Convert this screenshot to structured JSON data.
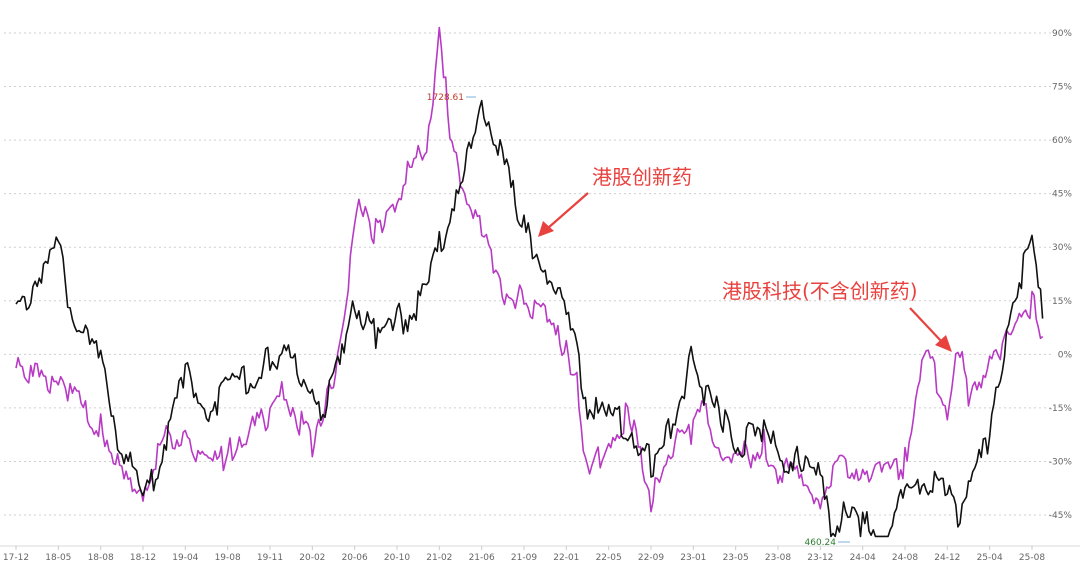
{
  "chart_data": {
    "type": "line",
    "title": "",
    "xlabel": "",
    "ylabel": "",
    "grid": true,
    "legend": "none",
    "x_ticks": [
      "17-12",
      "18-05",
      "18-08",
      "18-12",
      "19-04",
      "19-08",
      "19-11",
      "20-02",
      "20-06",
      "20-10",
      "21-02",
      "21-06",
      "21-09",
      "22-01",
      "22-05",
      "22-09",
      "23-01",
      "23-05",
      "23-08",
      "23-12",
      "24-04",
      "24-08",
      "24-12",
      "25-04",
      "25-08"
    ],
    "y_ticks": [
      "90%",
      "75%",
      "60%",
      "45%",
      "30%",
      "15%",
      "0%",
      "-15%",
      "-30%",
      "-45%"
    ],
    "y_tick_values": [
      90,
      75,
      60,
      45,
      30,
      15,
      0,
      -15,
      -30,
      -45
    ],
    "ylim": [
      -52,
      97
    ],
    "x": [
      "17-12",
      "18-02",
      "18-03",
      "18-05",
      "18-06",
      "18-08",
      "18-09",
      "18-10",
      "18-12",
      "19-01",
      "19-02",
      "19-04",
      "19-06",
      "19-08",
      "19-09",
      "19-11",
      "19-12",
      "20-02",
      "20-03",
      "20-05",
      "20-06",
      "20-08",
      "20-10",
      "20-11",
      "21-01",
      "21-02",
      "21-03",
      "21-04",
      "21-06",
      "21-07",
      "21-09",
      "21-11",
      "22-01",
      "22-02",
      "22-03",
      "22-05",
      "22-07",
      "22-09",
      "22-10",
      "23-01",
      "23-02",
      "23-04",
      "23-05",
      "23-07",
      "23-08",
      "23-10",
      "23-12",
      "24-01",
      "24-02",
      "24-04",
      "24-06",
      "24-08",
      "24-09",
      "24-10",
      "24-12",
      "25-01",
      "25-02",
      "25-04",
      "25-06",
      "25-08",
      "25-09"
    ],
    "series": [
      {
        "name": "港股创新药",
        "color": "#111111",
        "values": [
          10,
          20,
          22,
          31,
          10,
          -2,
          -18,
          -25,
          -40,
          -35,
          -25,
          -5,
          -15,
          -10,
          -8,
          -2,
          0,
          -10,
          -15,
          0,
          15,
          5,
          10,
          10,
          20,
          30,
          40,
          45,
          72,
          60,
          35,
          25,
          10,
          0,
          -15,
          -18,
          -20,
          -30,
          -28,
          0,
          -10,
          -20,
          -25,
          -22,
          -28,
          -30,
          -35,
          -50,
          -45,
          -48,
          -50,
          -40,
          -38,
          -35,
          -40,
          -45,
          -35,
          -25,
          15,
          30,
          10
        ]
      },
      {
        "name": "港股科技(不含创新药)",
        "color": "#b83ac4",
        "values": [
          0,
          -5,
          -8,
          -5,
          -12,
          -20,
          -25,
          -35,
          -38,
          -30,
          -25,
          -20,
          -32,
          -28,
          -22,
          -18,
          -10,
          -25,
          -20,
          10,
          40,
          35,
          45,
          50,
          60,
          95,
          60,
          50,
          35,
          20,
          15,
          10,
          0,
          -5,
          -35,
          -25,
          -15,
          -45,
          -30,
          -20,
          -15,
          -28,
          -30,
          -25,
          -32,
          -36,
          -40,
          -35,
          -30,
          -32,
          -35,
          -30,
          -10,
          0,
          -15,
          5,
          -15,
          0,
          5,
          15,
          5
        ]
      }
    ],
    "annotations": [
      {
        "text": "港股创新药"
      },
      {
        "text": "港股科技(不含创新药)"
      }
    ],
    "max_label": "1728.61",
    "min_label": "460.24"
  }
}
